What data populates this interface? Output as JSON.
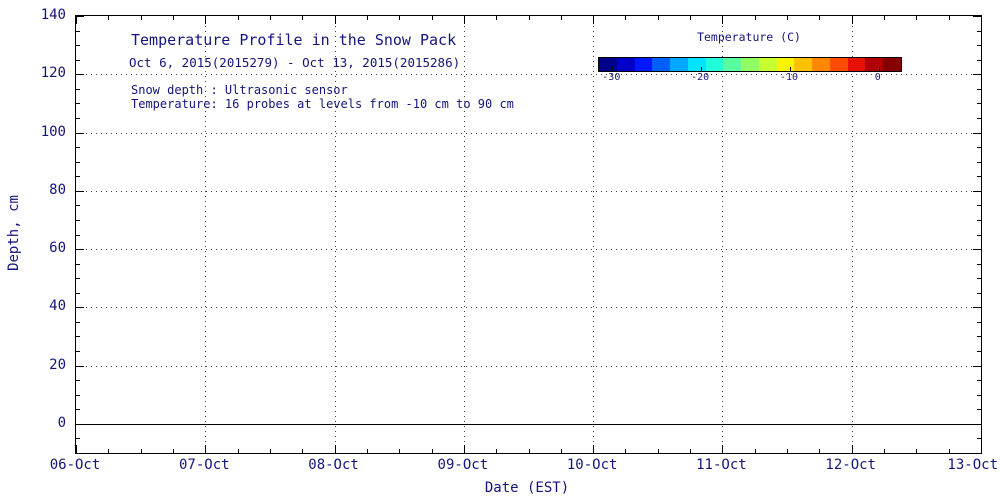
{
  "colors": {
    "text": "#14147d",
    "axis": "#000000",
    "grid": "#404040",
    "surface_line": "#000000",
    "background": "#ffffff"
  },
  "chart_data": {
    "type": "heatmap",
    "title": "Temperature Profile in the Snow Pack",
    "subtitle": "Oct  6, 2015(2015279) - Oct 13, 2015(2015286)",
    "annotations": {
      "line1": "Snow depth : Ultrasonic sensor",
      "line2": "Temperature: 16 probes at levels from -10 cm to 90 cm"
    },
    "xlabel": "Date (EST)",
    "ylabel": "Depth, cm",
    "x_tick_labels": [
      "06-Oct",
      "07-Oct",
      "08-Oct",
      "09-Oct",
      "10-Oct",
      "11-Oct",
      "12-Oct",
      "13-Oct"
    ],
    "y_ticks": [
      0,
      20,
      40,
      60,
      80,
      100,
      120,
      140
    ],
    "y_lim": [
      -10,
      140
    ],
    "grid": true,
    "surface_line_depth_cm": 0,
    "data_points": [],
    "colorbar": {
      "label": "Temperature (C)",
      "tick_labels": [
        "-30",
        "-20",
        "-10",
        "0"
      ],
      "tick_values": [
        -30,
        -20,
        -10,
        0
      ],
      "range": [
        -31.5,
        2.5
      ],
      "palette": [
        "#00008a",
        "#0000c8",
        "#0018ff",
        "#0060ff",
        "#00a8ff",
        "#00e4ff",
        "#20ffd8",
        "#58ff9c",
        "#90ff64",
        "#c8ff30",
        "#f8f400",
        "#ffc000",
        "#ff8800",
        "#ff4c00",
        "#e81000",
        "#b00000",
        "#860000"
      ]
    }
  }
}
